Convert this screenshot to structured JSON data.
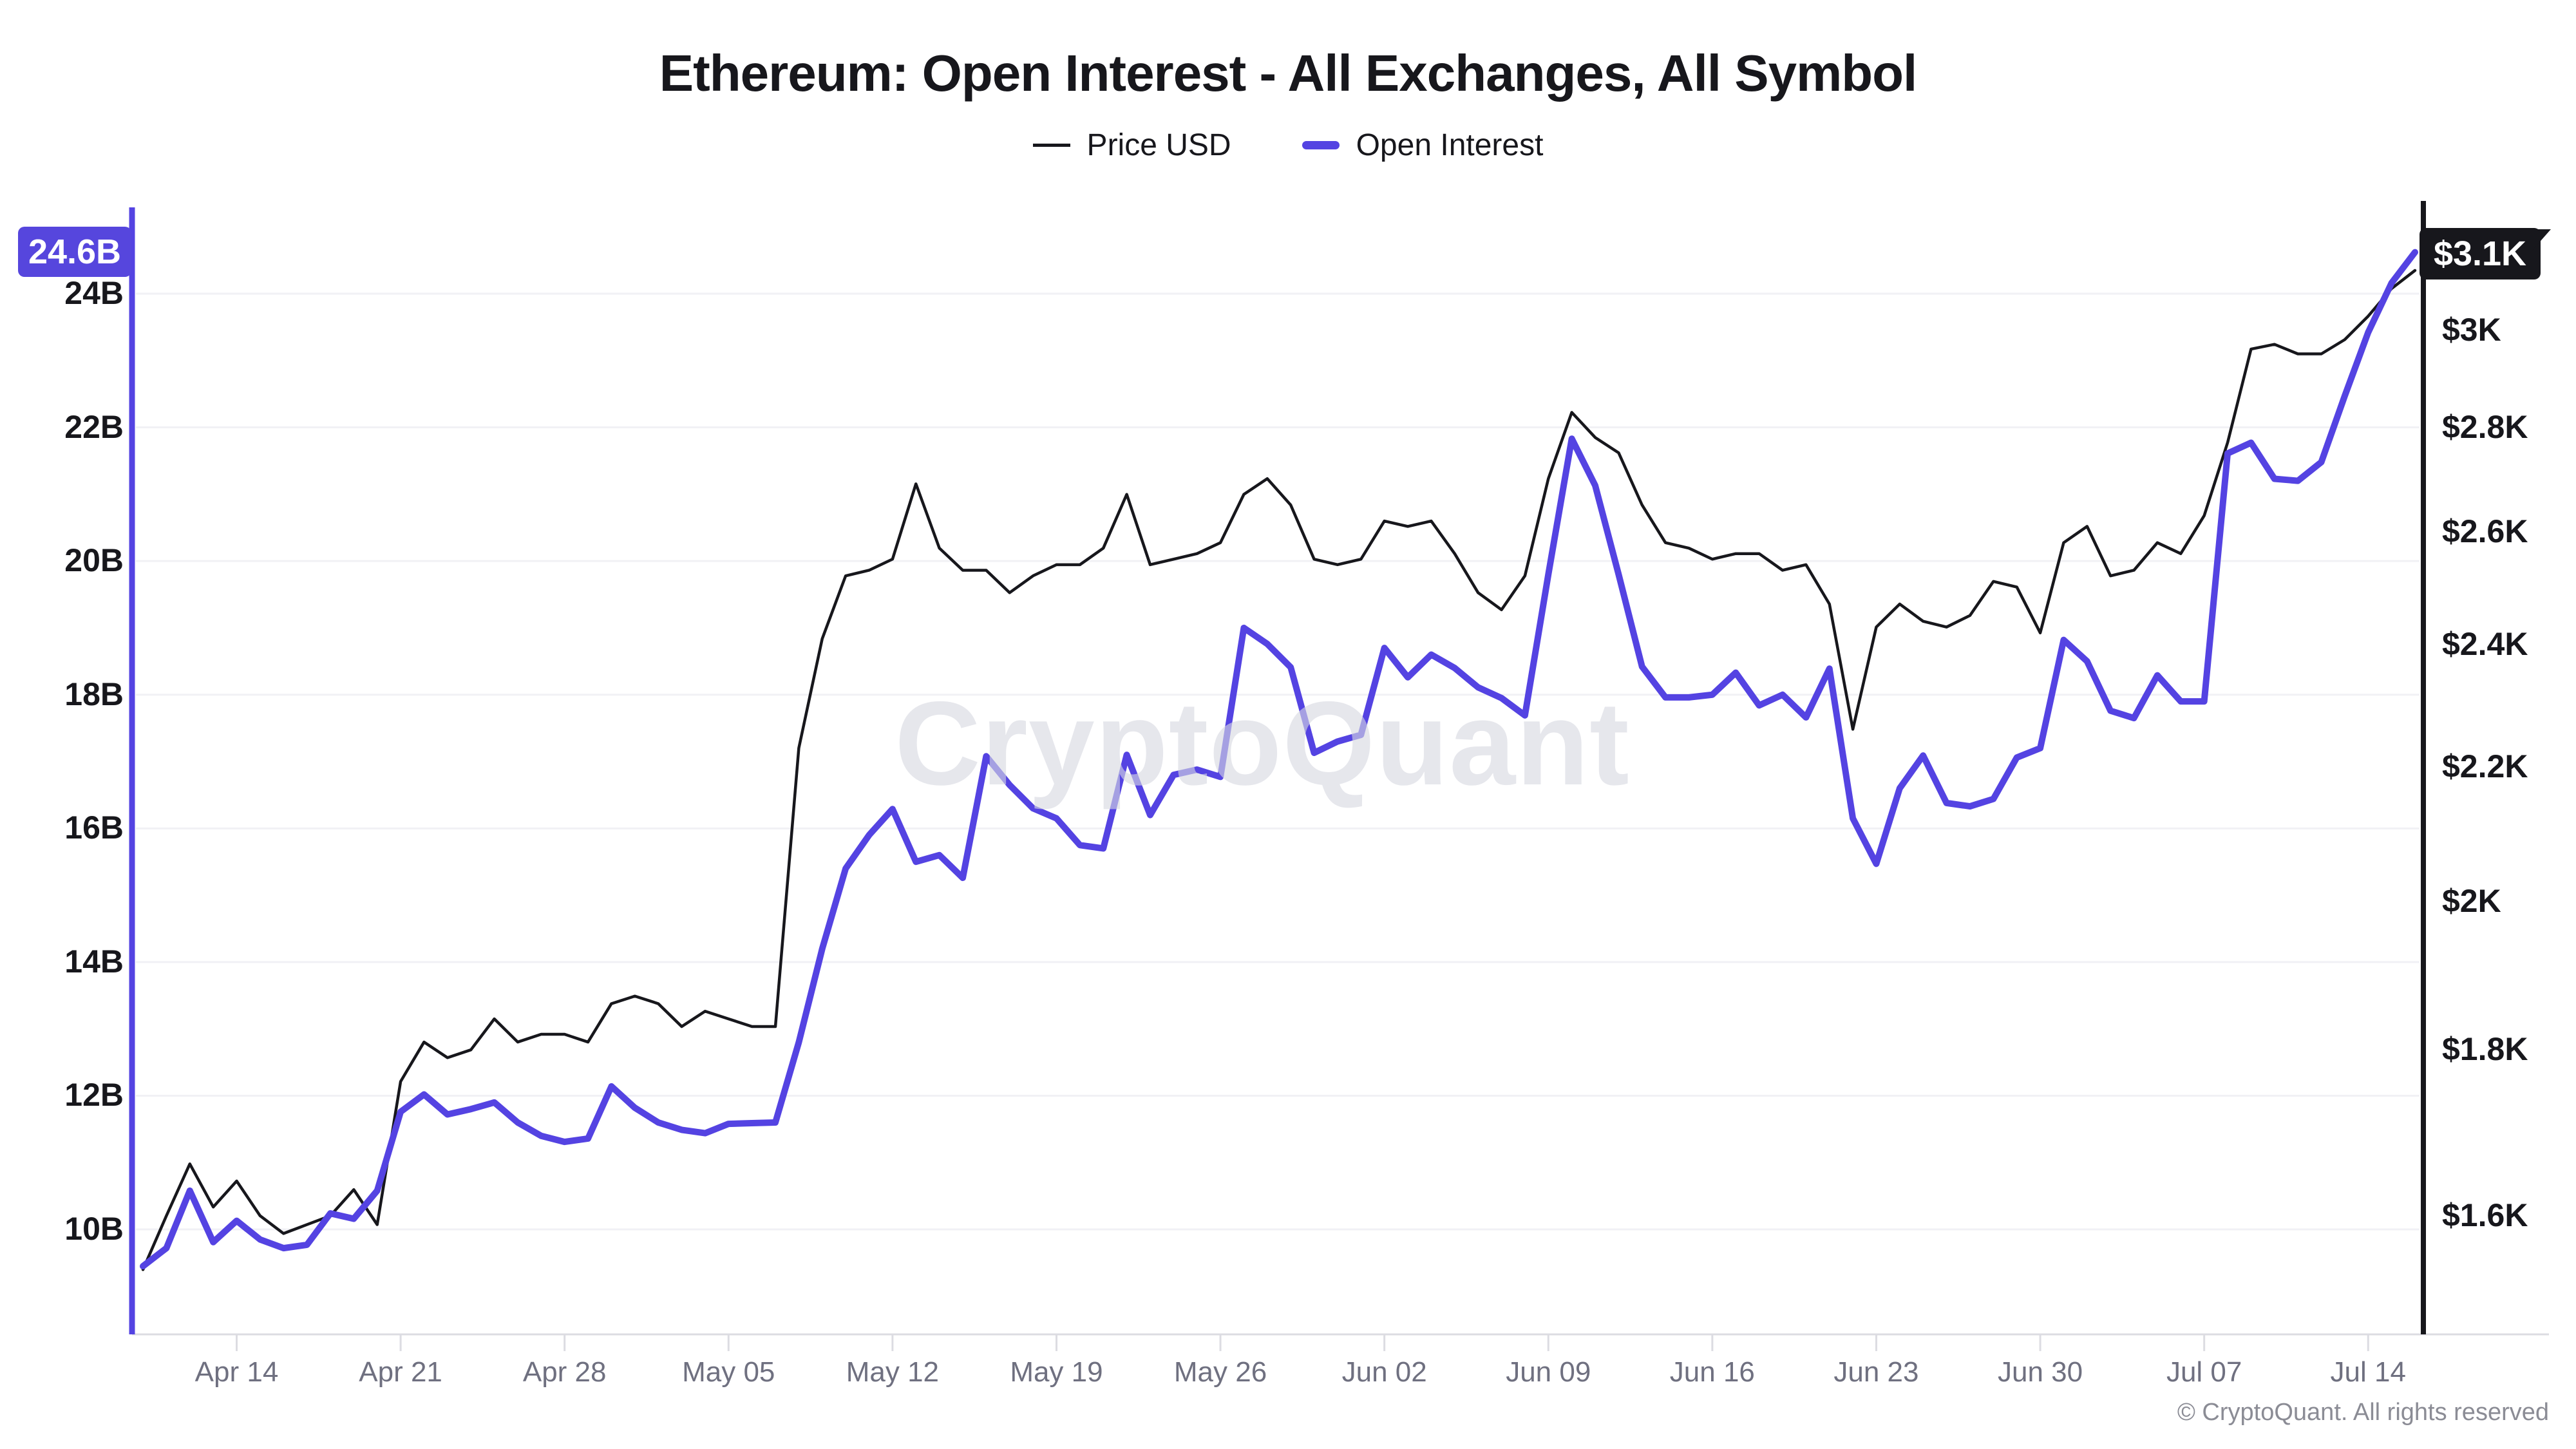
{
  "header": {
    "title": "Ethereum: Open Interest - All Exchanges, All Symbol"
  },
  "legend": [
    {
      "label": "Price USD",
      "color": "#17171c"
    },
    {
      "label": "Open Interest",
      "color": "#5443e2"
    }
  ],
  "watermark": "CryptoQuant",
  "footer": "© CryptoQuant. All rights reserved",
  "colors": {
    "accent_purple": "#5443e2",
    "badge_purple": "#5646dd",
    "line_black": "#17171c",
    "gridline": "#f1f1f5",
    "axis_bottom": "#dcdce2",
    "tick_label": "#6f7080",
    "watermark": "#d8d9e2"
  },
  "chart_data": {
    "type": "line",
    "title": "Ethereum: Open Interest - All Exchanges, All Symbol",
    "grid": "horizontal-only",
    "legend_position": "top-center",
    "start_date": "Apr 10",
    "end_date": "Jul 16",
    "x_ticks": [
      {
        "label": "Apr 14",
        "day_index": 4
      },
      {
        "label": "Apr 21",
        "day_index": 11
      },
      {
        "label": "Apr 28",
        "day_index": 18
      },
      {
        "label": "May 05",
        "day_index": 25
      },
      {
        "label": "May 12",
        "day_index": 32
      },
      {
        "label": "May 19",
        "day_index": 39
      },
      {
        "label": "May 26",
        "day_index": 46
      },
      {
        "label": "Jun 02",
        "day_index": 53
      },
      {
        "label": "Jun 09",
        "day_index": 60
      },
      {
        "label": "Jun 16",
        "day_index": 67
      },
      {
        "label": "Jun 23",
        "day_index": 74
      },
      {
        "label": "Jun 30",
        "day_index": 81
      },
      {
        "label": "Jul 07",
        "day_index": 88
      },
      {
        "label": "Jul 14",
        "day_index": 95
      }
    ],
    "left_axis": {
      "scale": "linear",
      "unit": "B",
      "range": [
        9.0,
        25.0
      ],
      "ticks": [
        {
          "label": "24B",
          "value": 24
        },
        {
          "label": "22B",
          "value": 22
        },
        {
          "label": "20B",
          "value": 20
        },
        {
          "label": "18B",
          "value": 18
        },
        {
          "label": "16B",
          "value": 16
        },
        {
          "label": "14B",
          "value": 14
        },
        {
          "label": "12B",
          "value": 12
        },
        {
          "label": "10B",
          "value": 10
        }
      ],
      "current_badge": {
        "label": "24.6B",
        "value": 24.6
      }
    },
    "right_axis": {
      "scale": "log",
      "unit": "USD",
      "range": [
        1450,
        3200
      ],
      "ticks": [
        {
          "label": "$3K",
          "value": 3000
        },
        {
          "label": "$2.8K",
          "value": 2800
        },
        {
          "label": "$2.6K",
          "value": 2600
        },
        {
          "label": "$2.4K",
          "value": 2400
        },
        {
          "label": "$2.2K",
          "value": 2200
        },
        {
          "label": "$2K",
          "value": 2000
        },
        {
          "label": "$1.8K",
          "value": 1800
        },
        {
          "label": "$1.6K",
          "value": 1600
        }
      ],
      "current_badge": {
        "label": "$3.1K",
        "value": 3100
      }
    },
    "series": [
      {
        "name": "Price USD",
        "axis": "right",
        "color": "#17171c",
        "width": 4.5,
        "values": [
          1540,
          1600,
          1660,
          1610,
          1640,
          1600,
          1580,
          1590,
          1600,
          1630,
          1590,
          1760,
          1810,
          1790,
          1800,
          1840,
          1810,
          1820,
          1820,
          1810,
          1860,
          1870,
          1860,
          1830,
          1850,
          1840,
          1830,
          1830,
          2230,
          2410,
          2520,
          2530,
          2550,
          2690,
          2570,
          2530,
          2530,
          2490,
          2520,
          2540,
          2540,
          2570,
          2670,
          2540,
          2550,
          2560,
          2580,
          2670,
          2700,
          2650,
          2550,
          2540,
          2550,
          2620,
          2610,
          2620,
          2560,
          2490,
          2460,
          2520,
          2700,
          2830,
          2780,
          2750,
          2650,
          2580,
          2570,
          2550,
          2560,
          2560,
          2530,
          2540,
          2470,
          2260,
          2430,
          2470,
          2440,
          2430,
          2450,
          2510,
          2500,
          2420,
          2580,
          2610,
          2520,
          2530,
          2580,
          2560,
          2630,
          2770,
          2960,
          2970,
          2950,
          2950,
          2980,
          3030,
          3090,
          3130
        ]
      },
      {
        "name": "Open Interest",
        "axis": "left",
        "color": "#5443e2",
        "width": 10,
        "values": [
          9.45,
          9.72,
          10.58,
          9.81,
          10.13,
          9.85,
          9.72,
          9.77,
          10.24,
          10.16,
          10.58,
          11.76,
          12.02,
          11.72,
          11.8,
          11.9,
          11.6,
          11.4,
          11.31,
          11.36,
          12.14,
          11.82,
          11.6,
          11.49,
          11.44,
          11.58,
          11.59,
          11.6,
          12.8,
          14.2,
          15.4,
          15.9,
          16.29,
          15.5,
          15.6,
          15.26,
          17.08,
          16.65,
          16.3,
          16.15,
          15.75,
          15.7,
          17.1,
          16.2,
          16.8,
          16.88,
          16.77,
          19.0,
          18.76,
          18.41,
          17.13,
          17.3,
          17.4,
          18.7,
          18.26,
          18.6,
          18.4,
          18.11,
          17.95,
          17.69,
          19.8,
          21.83,
          21.13,
          19.8,
          18.42,
          17.96,
          17.96,
          18.0,
          18.33,
          17.84,
          18.0,
          17.66,
          18.39,
          16.15,
          15.47,
          16.6,
          17.09,
          16.38,
          16.33,
          16.44,
          17.06,
          17.2,
          18.82,
          18.5,
          17.76,
          17.65,
          18.29,
          17.9,
          17.9,
          21.61,
          21.77,
          21.23,
          21.2,
          21.48,
          22.47,
          23.42,
          24.16,
          24.62
        ]
      }
    ]
  }
}
